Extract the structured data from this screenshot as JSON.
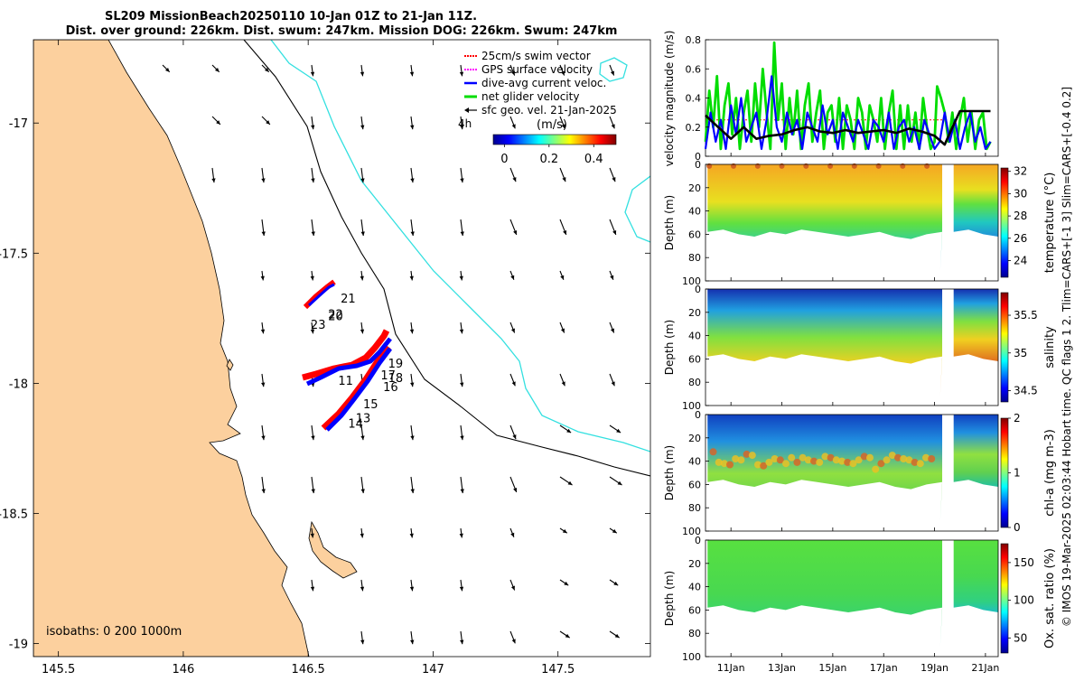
{
  "header": {
    "title_line1": "SL209 MissionBeach20250110 10-Jan 01Z to 21-Jan 11Z.",
    "title_line2": "Dist. over ground: 226km. Dist. swum: 247km. Mission DOG: 226km. Swum: 247km"
  },
  "side_note": "© IMOS 19-Mar-2025 02:03:44 Hobart time. QC flags 1 2. Tlim=CARS+[-1 3] Slim=CARS+[-0.4 0.2]",
  "colors": {
    "land": "#fcd09e",
    "coast": "#000000",
    "isobath_200": "#000000",
    "isobath_1000": "#33e0e0",
    "swim_vector": "#ff0000",
    "gps_velocity": "#ff00ff",
    "dive_avg": "#0000ff",
    "net_glider": "#00dd00",
    "sfc_geo": "#000000",
    "speed_line": "#000000"
  },
  "chart_data": [
    {
      "type": "map",
      "name": "track-map",
      "xlim": [
        145.4,
        147.87
      ],
      "ylim": [
        -19.05,
        -16.68
      ],
      "xticks": [
        145.5,
        146,
        146.5,
        147,
        147.5
      ],
      "xtick_labels": [
        "145.5",
        "146",
        "146.5",
        "147",
        "147.5"
      ],
      "yticks": [
        -17,
        -17.5,
        -18,
        -18.5,
        -19
      ],
      "ytick_labels": [
        "-17",
        "-17.5",
        "-18",
        "-18.5",
        "-19"
      ],
      "isobaths_label": "isobaths: 0   200  1000m",
      "legend": {
        "entries": [
          {
            "label": "25cm/s swim vector",
            "color": "#ff0000",
            "style": "dotted"
          },
          {
            "label": "GPS surface velocity",
            "color": "#ff00ff",
            "style": "dotted"
          },
          {
            "label": "dive-avg current veloc.",
            "color": "#0000ff",
            "style": "solid"
          },
          {
            "label": "net glider velocity",
            "color": "#00dd00",
            "style": "solid"
          },
          {
            "label": "sfc geo. vel. 21-Jan-2025",
            "color": "#000000",
            "style": "arrow"
          }
        ],
        "time_label": "4h",
        "colorbar_label": "(m/s)",
        "colorbar_ticks": [
          "0",
          "0.2",
          "0.4"
        ],
        "colorbar_range": [
          -0.05,
          0.5
        ]
      },
      "day_labels": [
        {
          "text": "21",
          "lon": 146.63,
          "lat": -17.69
        },
        {
          "text": "22",
          "lon": 146.58,
          "lat": -17.75
        },
        {
          "text": "20",
          "lon": 146.58,
          "lat": -17.757
        },
        {
          "text": "23",
          "lon": 146.51,
          "lat": -17.79
        },
        {
          "text": "19",
          "lon": 146.82,
          "lat": -17.94
        },
        {
          "text": "17",
          "lon": 146.79,
          "lat": -17.985
        },
        {
          "text": "18",
          "lon": 146.82,
          "lat": -17.995
        },
        {
          "text": "11",
          "lon": 146.62,
          "lat": -18.005
        },
        {
          "text": "16",
          "lon": 146.8,
          "lat": -18.03
        },
        {
          "text": "15",
          "lon": 146.72,
          "lat": -18.095
        },
        {
          "text": "13",
          "lon": 146.69,
          "lat": -18.15
        },
        {
          "text": "14",
          "lon": 146.66,
          "lat": -18.17
        }
      ]
    },
    {
      "type": "line",
      "name": "velocity-magnitude",
      "ylabel": "velocity magnitude (m/s)",
      "ylim": [
        0,
        0.8
      ],
      "yticks": [
        0,
        0.2,
        0.4,
        0.6,
        0.8
      ],
      "ytick_labels": [
        "0",
        "0.2",
        "0.4",
        "0.6",
        "0.8"
      ],
      "xlim": [
        10.0,
        21.5
      ],
      "series": [
        {
          "name": "net glider velocity",
          "color": "#00dd00",
          "x": [
            10.0,
            10.15,
            10.3,
            10.45,
            10.6,
            10.75,
            10.9,
            11.05,
            11.2,
            11.35,
            11.5,
            11.65,
            11.8,
            11.95,
            12.1,
            12.25,
            12.4,
            12.55,
            12.7,
            12.85,
            13.0,
            13.15,
            13.3,
            13.45,
            13.6,
            13.75,
            13.9,
            14.05,
            14.2,
            14.35,
            14.5,
            14.65,
            14.8,
            14.95,
            15.1,
            15.25,
            15.4,
            15.55,
            15.7,
            15.85,
            16.0,
            16.15,
            16.3,
            16.45,
            16.6,
            16.75,
            16.9,
            17.05,
            17.2,
            17.35,
            17.5,
            17.65,
            17.8,
            17.95,
            18.1,
            18.25,
            18.4,
            18.55,
            18.7,
            18.85,
            19.0,
            19.1,
            19.25,
            19.4,
            19.55,
            19.7,
            19.85,
            20.0,
            20.15,
            20.3,
            20.45,
            20.6,
            20.75,
            20.9,
            21.05,
            21.2
          ],
          "values": [
            0.1,
            0.45,
            0.2,
            0.55,
            0.05,
            0.35,
            0.5,
            0.15,
            0.4,
            0.05,
            0.3,
            0.45,
            0.1,
            0.5,
            0.2,
            0.6,
            0.3,
            0.05,
            0.78,
            0.25,
            0.5,
            0.05,
            0.4,
            0.15,
            0.45,
            0.05,
            0.35,
            0.5,
            0.1,
            0.3,
            0.45,
            0.05,
            0.3,
            0.35,
            0.1,
            0.4,
            0.05,
            0.35,
            0.25,
            0.05,
            0.4,
            0.3,
            0.05,
            0.35,
            0.25,
            0.1,
            0.4,
            0.05,
            0.3,
            0.45,
            0.05,
            0.35,
            0.05,
            0.35,
            0.1,
            0.3,
            0.05,
            0.4,
            0.2,
            0.05,
            0.1,
            0.48,
            0.4,
            0.3,
            0.1,
            0.3,
            0.05,
            0.25,
            0.4,
            0.1,
            0.3,
            0.05,
            0.25,
            0.3,
            0.05,
            0.1
          ]
        },
        {
          "name": "dive-avg current veloc.",
          "color": "#0000ff",
          "x": [
            10.0,
            10.2,
            10.4,
            10.6,
            10.8,
            11.0,
            11.2,
            11.4,
            11.6,
            11.8,
            12.0,
            12.2,
            12.4,
            12.6,
            12.8,
            13.0,
            13.2,
            13.4,
            13.6,
            13.8,
            14.0,
            14.2,
            14.4,
            14.6,
            14.8,
            15.0,
            15.2,
            15.4,
            15.6,
            15.8,
            16.0,
            16.2,
            16.4,
            16.6,
            16.8,
            17.0,
            17.2,
            17.4,
            17.6,
            17.8,
            18.0,
            18.2,
            18.4,
            18.6,
            18.8,
            19.0,
            19.2,
            19.4,
            19.6,
            19.8,
            20.0,
            20.2,
            20.4,
            20.6,
            20.8,
            21.0,
            21.2
          ],
          "values": [
            0.05,
            0.3,
            0.1,
            0.25,
            0.05,
            0.35,
            0.15,
            0.4,
            0.1,
            0.2,
            0.3,
            0.05,
            0.25,
            0.55,
            0.2,
            0.1,
            0.3,
            0.15,
            0.25,
            0.05,
            0.3,
            0.2,
            0.1,
            0.35,
            0.15,
            0.25,
            0.05,
            0.3,
            0.2,
            0.1,
            0.25,
            0.15,
            0.05,
            0.25,
            0.2,
            0.1,
            0.3,
            0.05,
            0.2,
            0.25,
            0.1,
            0.2,
            0.05,
            0.25,
            0.15,
            0.05,
            0.1,
            0.3,
            0.1,
            0.25,
            0.05,
            0.2,
            0.3,
            0.1,
            0.2,
            0.05,
            0.1
          ]
        },
        {
          "name": "swim speed",
          "color": "#000000",
          "x": [
            10.0,
            10.5,
            11.0,
            11.5,
            12.0,
            12.5,
            13.0,
            13.5,
            14.0,
            14.5,
            15.0,
            15.5,
            16.0,
            16.5,
            17.0,
            17.5,
            18.0,
            18.5,
            19.0,
            19.4,
            19.6,
            20.0,
            20.5,
            21.0,
            21.2
          ],
          "values": [
            0.28,
            0.2,
            0.12,
            0.2,
            0.12,
            0.14,
            0.15,
            0.18,
            0.2,
            0.17,
            0.16,
            0.18,
            0.16,
            0.17,
            0.18,
            0.16,
            0.19,
            0.17,
            0.14,
            0.08,
            0.16,
            0.31,
            0.31,
            0.31,
            0.31
          ]
        }
      ]
    },
    {
      "type": "heatmap",
      "name": "temperature",
      "ylabel": "Depth (m)",
      "ylim": [
        0,
        100
      ],
      "yticks": [
        0,
        20,
        40,
        60,
        80,
        100
      ],
      "ytick_labels": [
        "0",
        "20",
        "40",
        "60",
        "80",
        "100"
      ],
      "colorbar_label": "temperature (°C)",
      "colorbar_range": [
        22.5,
        32.3
      ],
      "colorbar_ticks": [
        "24",
        "26",
        "28",
        "30",
        "32"
      ],
      "surface_value": 30.5,
      "bottom_value": 24.5,
      "thermocline_depth_m": [
        40,
        45,
        50,
        48,
        52,
        55,
        50,
        46,
        48,
        50,
        52,
        48,
        50,
        55,
        50,
        45
      ],
      "bottom_depth_m": [
        58,
        56,
        60,
        62,
        58,
        60,
        56,
        58,
        60,
        62,
        60,
        58,
        62,
        64,
        60,
        58
      ]
    },
    {
      "type": "heatmap",
      "name": "salinity",
      "ylabel": "Depth (m)",
      "ylim": [
        0,
        100
      ],
      "yticks": [
        0,
        20,
        40,
        60,
        80,
        100
      ],
      "ytick_labels": [
        "0",
        "20",
        "40",
        "60",
        "80",
        "100"
      ],
      "colorbar_label": "salinity",
      "colorbar_range": [
        34.35,
        35.8
      ],
      "colorbar_ticks": [
        "34.5",
        "35",
        "35.5"
      ],
      "surface_value": 34.5,
      "bottom_value": 35.6,
      "halocline_depth_m": [
        25,
        30,
        28,
        32,
        30,
        26,
        28,
        30,
        32,
        30,
        28,
        26,
        30,
        32,
        28,
        30
      ],
      "bottom_depth_m": [
        58,
        56,
        60,
        62,
        58,
        60,
        56,
        58,
        60,
        62,
        60,
        58,
        62,
        64,
        60,
        58
      ]
    },
    {
      "type": "heatmap",
      "name": "chlorophyll",
      "ylabel": "Depth (m)",
      "ylim": [
        0,
        100
      ],
      "yticks": [
        0,
        20,
        40,
        60,
        80,
        100
      ],
      "ytick_labels": [
        "0",
        "20",
        "40",
        "60",
        "80",
        "100"
      ],
      "colorbar_label": "chl-a (mg m-3)",
      "colorbar_range": [
        0,
        2
      ],
      "colorbar_ticks": [
        "0",
        "1",
        "2"
      ],
      "surface_value": 0.2,
      "max_layer_value": 1.4,
      "max_layer_depth_m": [
        35,
        38,
        40,
        42,
        38,
        40,
        36,
        38,
        40,
        42,
        40,
        38,
        40,
        44,
        40,
        38
      ],
      "bottom_depth_m": [
        58,
        56,
        60,
        62,
        58,
        60,
        56,
        58,
        60,
        62,
        60,
        58,
        62,
        64,
        60,
        58
      ]
    },
    {
      "type": "heatmap",
      "name": "oxygen",
      "ylabel": "Depth (m)",
      "ylim": [
        0,
        100
      ],
      "yticks": [
        0,
        20,
        40,
        60,
        80,
        100
      ],
      "ytick_labels": [
        "0",
        "20",
        "40",
        "60",
        "80",
        "100"
      ],
      "colorbar_label": "Ox. sat. ratio (%)",
      "colorbar_range": [
        30,
        175
      ],
      "colorbar_ticks": [
        "50",
        "100",
        "150"
      ],
      "surface_value": 108,
      "bottom_value": 92,
      "bottom_depth_m": [
        58,
        56,
        60,
        62,
        58,
        60,
        56,
        58,
        60,
        62,
        60,
        58,
        62,
        64,
        60,
        58
      ]
    }
  ],
  "time_axis": {
    "xlim": [
      10.0,
      21.5
    ],
    "ticks": [
      11,
      13,
      15,
      17,
      19,
      21
    ],
    "tick_labels": [
      "11Jan",
      "13Jan",
      "15Jan",
      "17Jan",
      "19Jan",
      "21Jan"
    ],
    "data_start": 10.0,
    "gap_start": 19.3,
    "gap_end": 19.75,
    "data_end": 21.5
  }
}
